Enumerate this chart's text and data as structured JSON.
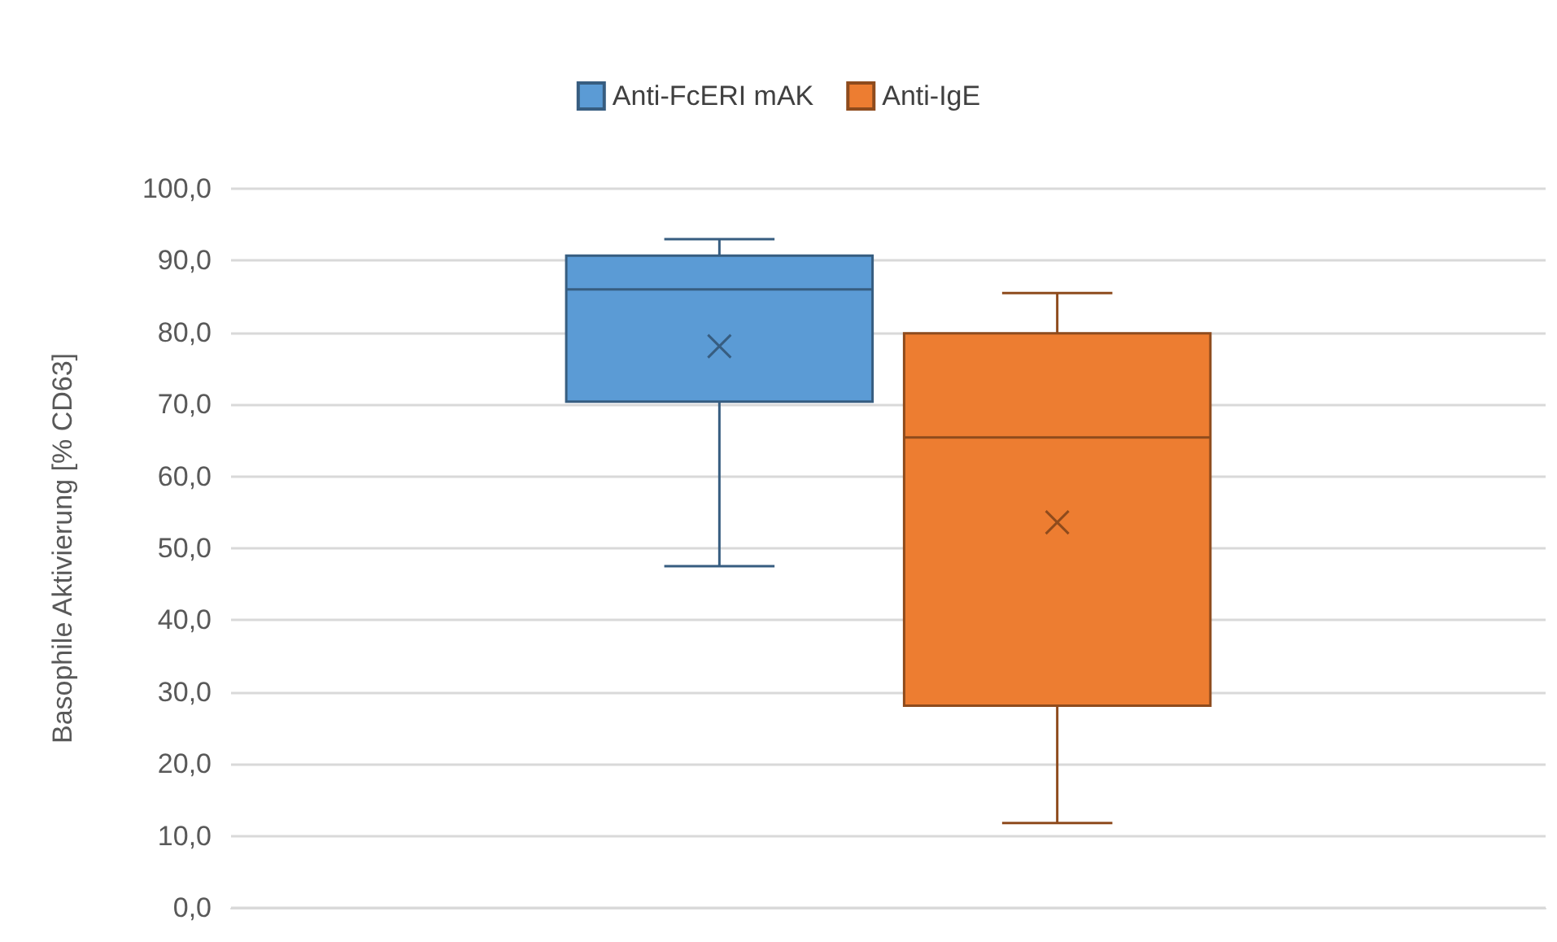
{
  "chart_data": {
    "type": "box",
    "categories": [
      null
    ],
    "ylabel": "Basophile Aktivierung [% CD63]",
    "ylim": [
      0,
      100
    ],
    "yticks": [
      {
        "value": 0,
        "label": "0,0"
      },
      {
        "value": 10,
        "label": "10,0"
      },
      {
        "value": 20,
        "label": "20,0"
      },
      {
        "value": 30,
        "label": "30,0"
      },
      {
        "value": 40,
        "label": "40,0"
      },
      {
        "value": 50,
        "label": "50,0"
      },
      {
        "value": 60,
        "label": "60,0"
      },
      {
        "value": 70,
        "label": "70,0"
      },
      {
        "value": 80,
        "label": "80,0"
      },
      {
        "value": 90,
        "label": "90,0"
      },
      {
        "value": 100,
        "label": "100,0"
      }
    ],
    "grid": "y",
    "legend": "top",
    "series": [
      {
        "name": "Anti-FcERI mAK",
        "color": "#5b9bd5",
        "boxes": [
          {
            "low": 47.5,
            "q1": 70.4,
            "median": 86.0,
            "q3": 90.7,
            "high": 93.0,
            "mean": 78.1
          }
        ]
      },
      {
        "name": "Anti-IgE",
        "color": "#ed7d31",
        "boxes": [
          {
            "low": 11.8,
            "q1": 28.1,
            "median": 65.4,
            "q3": 79.9,
            "high": 85.5,
            "mean": 53.6
          }
        ]
      }
    ]
  }
}
